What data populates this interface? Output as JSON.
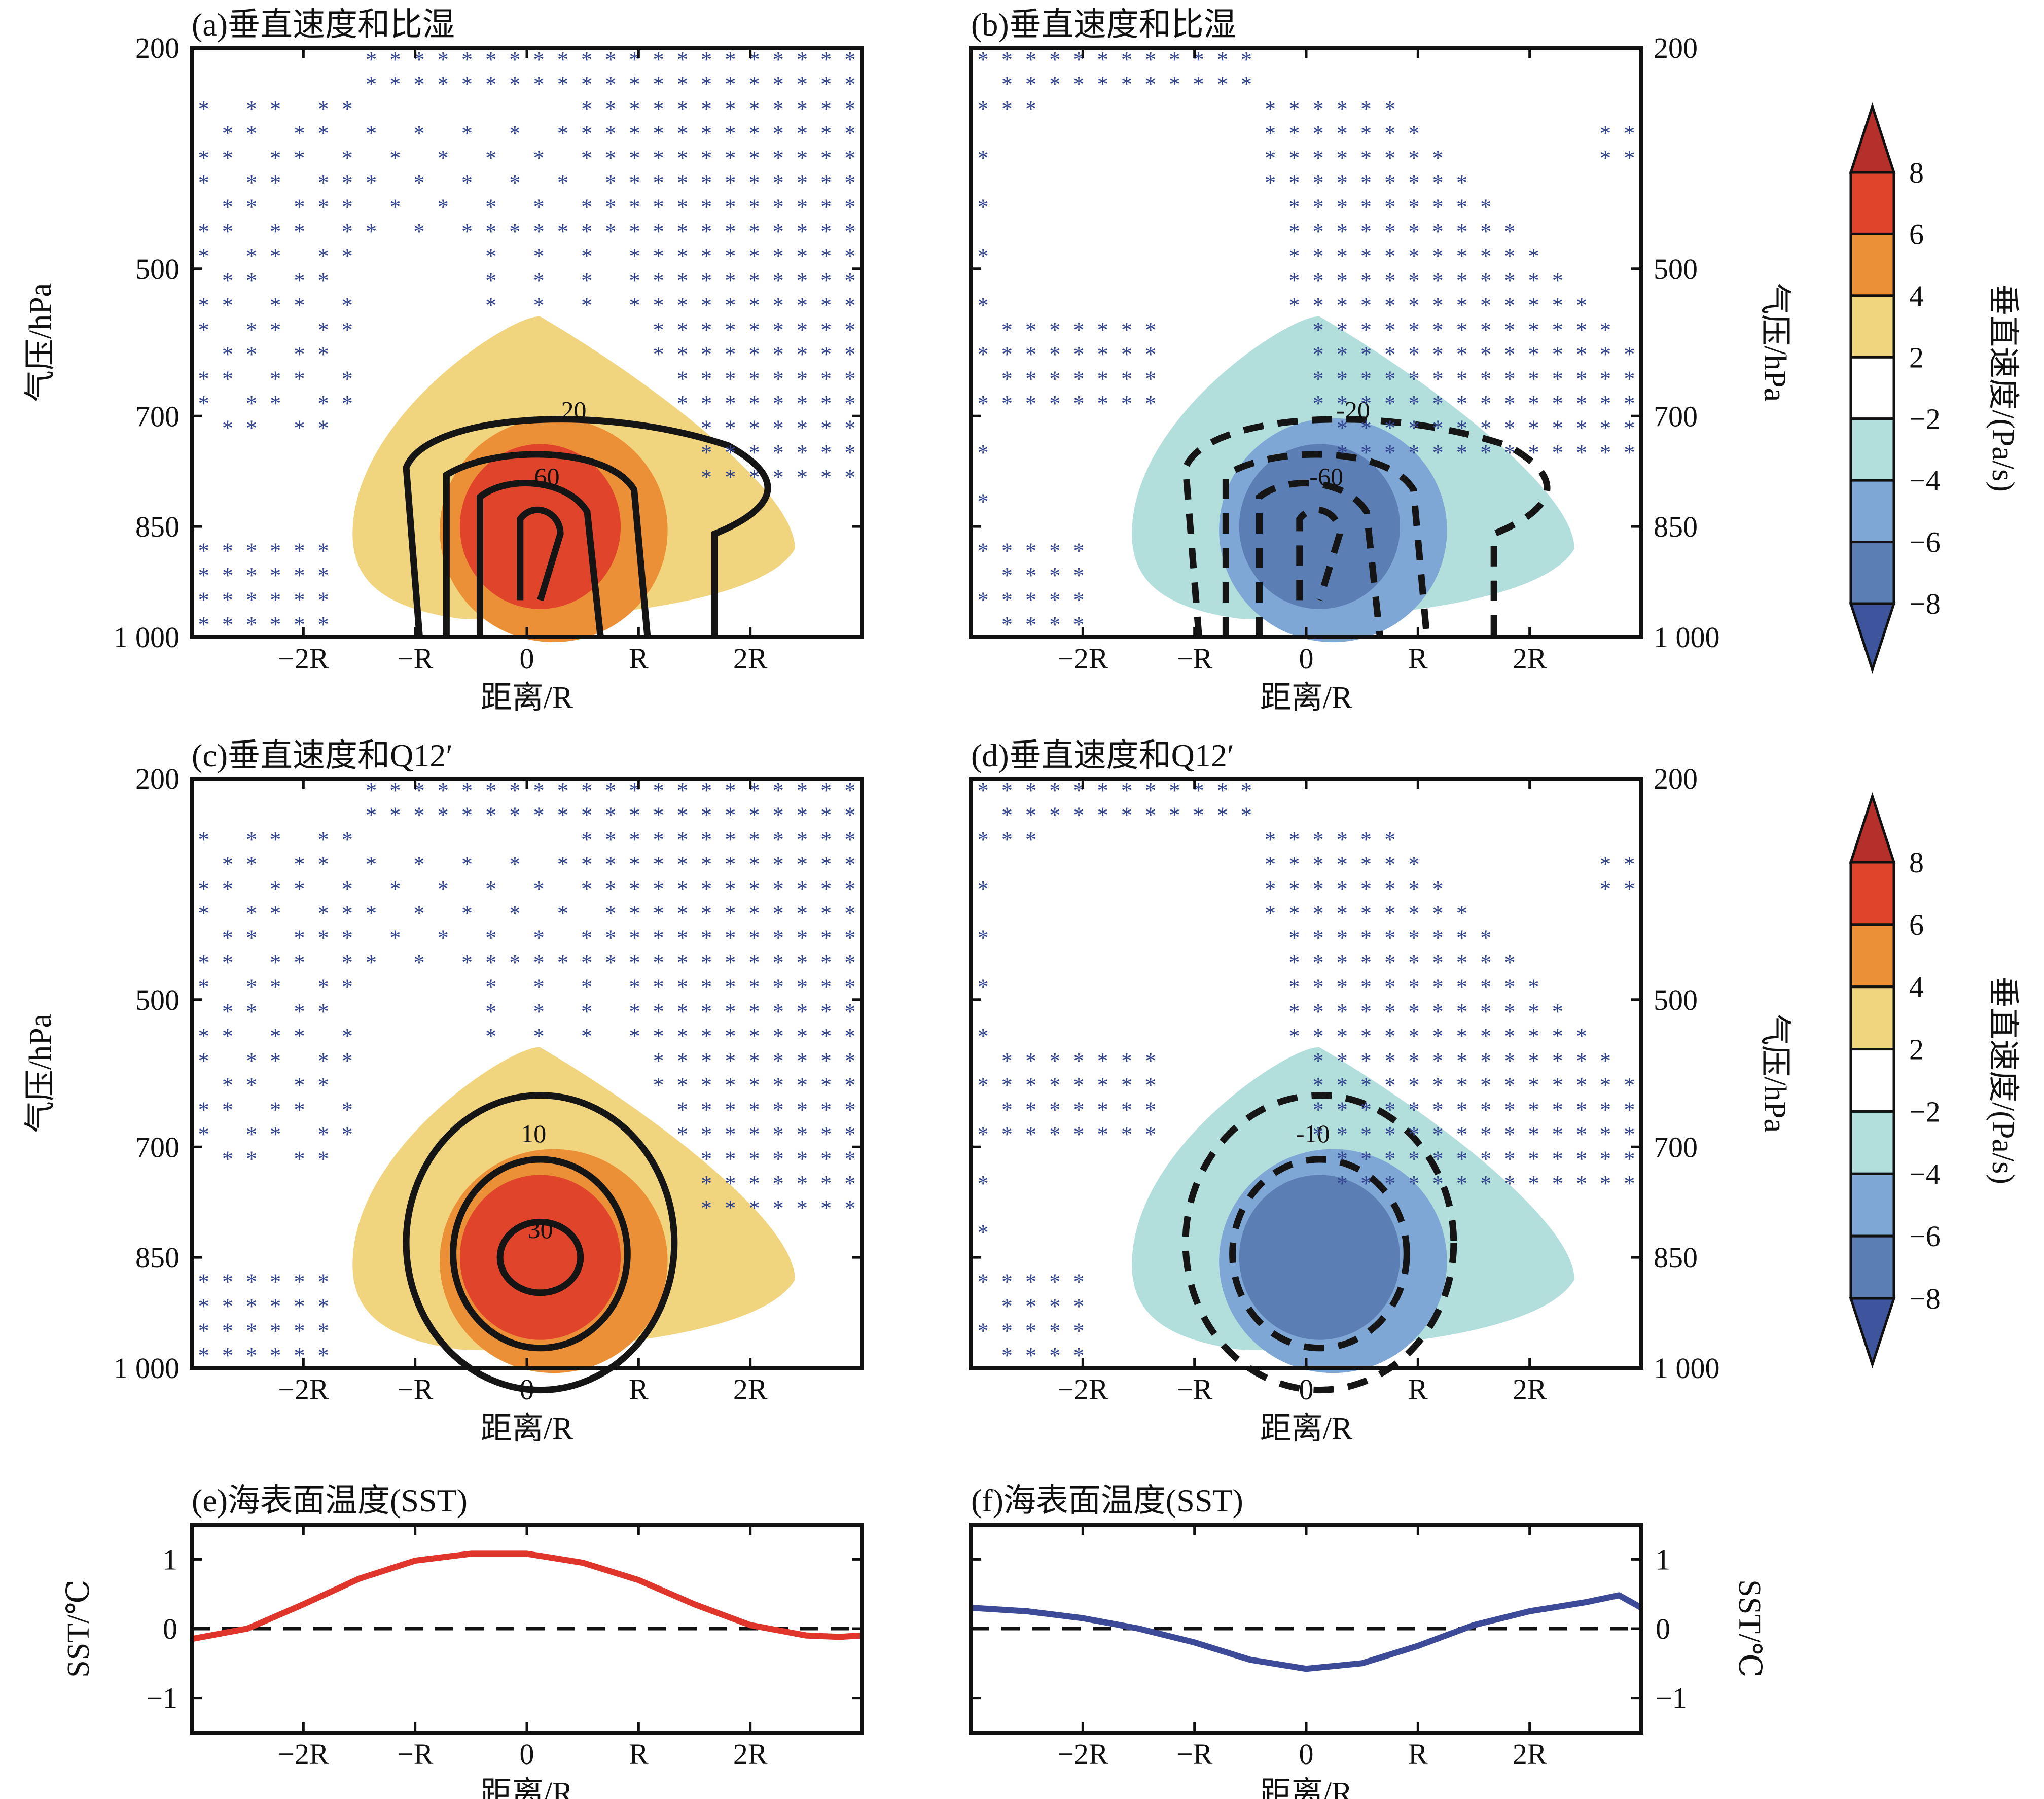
{
  "colors": {
    "warm": [
      "#f0d47e",
      "#ec9038",
      "#e0452c",
      "#b5302a"
    ],
    "cool": [
      "#b2dedb",
      "#7fa7d5",
      "#5b7eb5",
      "#3e549c"
    ],
    "stipple": "#33458f",
    "sst_warm_line": "#e0352b",
    "sst_cool_line": "#3c4a98",
    "axis": "#111111"
  },
  "shared": {
    "x_label": "距离/R",
    "x_tick_labels": [
      "−2R",
      "−R",
      "0",
      "R",
      "2R"
    ],
    "x_tick_values": [
      -2,
      -1,
      0,
      1,
      2
    ],
    "xlim": [
      -3,
      3
    ],
    "y_label": "气压/hPa",
    "y_tick_labels": [
      "200",
      "500",
      "700",
      "850",
      "1 000"
    ],
    "y_tick_values": [
      200,
      500,
      700,
      850,
      1000
    ],
    "ylim": [
      200,
      1000
    ],
    "sst_y_label": "SST/℃",
    "sst_y_tick_labels": [
      "1",
      "0",
      "−1"
    ],
    "sst_y_tick_values": [
      1,
      0,
      -1
    ],
    "sst_ylim": [
      -1.5,
      1.5
    ]
  },
  "colorbars": [
    {
      "label": "垂直速度/(Pa/s)",
      "levels": [
        -8,
        -6,
        -4,
        -2,
        2,
        4,
        6,
        8
      ],
      "tick_labels": [
        "8",
        "6",
        "4",
        "2",
        "−2",
        "−4",
        "−6",
        "−8"
      ]
    },
    {
      "label": "垂直速度/(Pa/s)",
      "levels": [
        -8,
        -6,
        -4,
        -2,
        2,
        4,
        6,
        8
      ],
      "tick_labels": [
        "8",
        "6",
        "4",
        "2",
        "−2",
        "−4",
        "−6",
        "−8"
      ]
    }
  ],
  "chart_data": [
    {
      "panel": "a",
      "type": "heatmap",
      "title": "(a)垂直速度和比湿",
      "shaded_field": "垂直速度",
      "sign": 1,
      "contours": {
        "style": "solid",
        "labels": [
          "20",
          "60"
        ],
        "label_values": [
          20,
          60
        ]
      },
      "xlim": [
        -3,
        3
      ],
      "ylim": [
        200,
        1000
      ]
    },
    {
      "panel": "b",
      "type": "heatmap",
      "title": "(b)垂直速度和比湿",
      "shaded_field": "垂直速度",
      "sign": -1,
      "contours": {
        "style": "dashed",
        "labels": [
          "-20",
          "-60"
        ],
        "label_values": [
          -20,
          -60
        ]
      },
      "xlim": [
        -3,
        3
      ],
      "ylim": [
        200,
        1000
      ]
    },
    {
      "panel": "c",
      "type": "heatmap",
      "title": "(c)垂直速度和Q12′",
      "shaded_field": "垂直速度",
      "sign": 1,
      "contours": {
        "style": "solid",
        "labels": [
          "10",
          "30"
        ],
        "label_values": [
          10,
          30
        ]
      },
      "xlim": [
        -3,
        3
      ],
      "ylim": [
        200,
        1000
      ]
    },
    {
      "panel": "d",
      "type": "heatmap",
      "title": "(d)垂直速度和Q12′",
      "shaded_field": "垂直速度",
      "sign": -1,
      "contours": {
        "style": "dashed",
        "labels": [
          "-10"
        ],
        "label_values": [
          -10
        ]
      },
      "xlim": [
        -3,
        3
      ],
      "ylim": [
        200,
        1000
      ]
    },
    {
      "panel": "e",
      "type": "line",
      "title": "(e)海表面温度(SST)",
      "xlabel": "距离/R",
      "ylabel": "SST/℃",
      "xlim": [
        -3,
        3
      ],
      "ylim": [
        -1.5,
        1.5
      ],
      "series": [
        {
          "x": [
            -3.0,
            -2.5,
            -2.0,
            -1.5,
            -1.0,
            -0.5,
            0.0,
            0.5,
            1.0,
            1.5,
            2.0,
            2.5,
            2.8,
            3.0
          ],
          "y": [
            -0.15,
            0.0,
            0.35,
            0.72,
            0.98,
            1.08,
            1.08,
            0.95,
            0.7,
            0.35,
            0.05,
            -0.1,
            -0.12,
            -0.1
          ]
        }
      ]
    },
    {
      "panel": "f",
      "type": "line",
      "title": "(f)海表面温度(SST)",
      "xlabel": "距离/R",
      "ylabel": "SST/℃",
      "xlim": [
        -3,
        3
      ],
      "ylim": [
        -1.5,
        1.5
      ],
      "series": [
        {
          "x": [
            -3.0,
            -2.5,
            -2.0,
            -1.5,
            -1.0,
            -0.5,
            0.0,
            0.5,
            1.0,
            1.5,
            2.0,
            2.5,
            2.8,
            3.0
          ],
          "y": [
            0.3,
            0.25,
            0.15,
            0.0,
            -0.2,
            -0.45,
            -0.58,
            -0.5,
            -0.25,
            0.05,
            0.25,
            0.38,
            0.48,
            0.3
          ]
        }
      ]
    }
  ]
}
